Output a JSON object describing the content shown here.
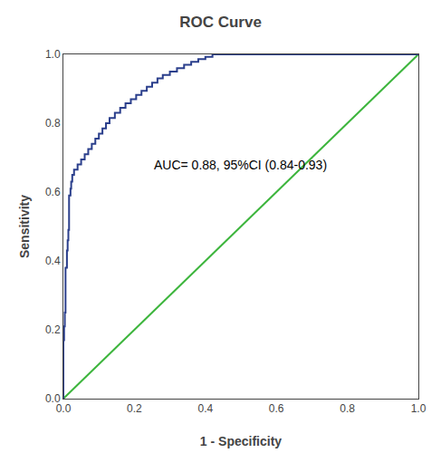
{
  "chart_data": {
    "type": "line",
    "title": "ROC Curve",
    "x_label": "1 - Specificity",
    "y_label": "Sensitivity",
    "xlim": [
      0.0,
      1.0
    ],
    "ylim": [
      0.0,
      1.0
    ],
    "xticks": [
      {
        "value": 0.0,
        "label": "0.0"
      },
      0.2,
      0.4,
      0.6,
      0.8,
      {
        "value": 1.0,
        "label": "1.0"
      }
    ],
    "yticks": [
      {
        "value": 0.0,
        "label": "0.0"
      },
      0.2,
      0.4,
      0.6,
      0.8,
      {
        "value": 1.0,
        "label": "1.0"
      }
    ],
    "grid": false,
    "annotations": [
      {
        "text": "AUC= 0.88, 95%CI (0.84-0.93)",
        "x": 0.25,
        "y": 0.68
      }
    ],
    "series": [
      {
        "color": "#3db53d",
        "x": [
          0,
          1
        ],
        "values": [
          0,
          1
        ]
      },
      {
        "color": "#2b3f8c",
        "x": [
          0.0,
          0.0,
          0.0,
          0.002,
          0.002,
          0.004,
          0.004,
          0.006,
          0.006,
          0.01,
          0.01,
          0.012,
          0.012,
          0.014,
          0.014,
          0.016,
          0.016,
          0.02,
          0.02,
          0.022,
          0.022,
          0.025,
          0.025,
          0.03,
          0.03,
          0.04,
          0.04,
          0.05,
          0.05,
          0.06,
          0.06,
          0.07,
          0.07,
          0.08,
          0.08,
          0.09,
          0.09,
          0.1,
          0.1,
          0.11,
          0.11,
          0.12,
          0.12,
          0.13,
          0.13,
          0.145,
          0.145,
          0.16,
          0.16,
          0.175,
          0.175,
          0.19,
          0.19,
          0.205,
          0.205,
          0.22,
          0.22,
          0.235,
          0.235,
          0.25,
          0.25,
          0.265,
          0.265,
          0.28,
          0.28,
          0.3,
          0.3,
          0.32,
          0.32,
          0.34,
          0.34,
          0.36,
          0.36,
          0.38,
          0.38,
          0.4,
          0.4,
          0.42,
          0.42,
          1.0
        ],
        "values": [
          0.0,
          0.06,
          0.17,
          0.17,
          0.21,
          0.21,
          0.25,
          0.25,
          0.38,
          0.38,
          0.43,
          0.43,
          0.46,
          0.46,
          0.49,
          0.49,
          0.59,
          0.59,
          0.61,
          0.61,
          0.63,
          0.63,
          0.65,
          0.65,
          0.665,
          0.665,
          0.68,
          0.68,
          0.695,
          0.695,
          0.71,
          0.71,
          0.725,
          0.725,
          0.74,
          0.74,
          0.755,
          0.755,
          0.77,
          0.77,
          0.785,
          0.785,
          0.8,
          0.8,
          0.815,
          0.815,
          0.83,
          0.83,
          0.845,
          0.845,
          0.858,
          0.858,
          0.87,
          0.87,
          0.882,
          0.882,
          0.894,
          0.894,
          0.906,
          0.906,
          0.918,
          0.918,
          0.93,
          0.93,
          0.94,
          0.94,
          0.95,
          0.95,
          0.96,
          0.96,
          0.97,
          0.97,
          0.978,
          0.978,
          0.986,
          0.986,
          0.993,
          0.993,
          1.0,
          1.0
        ]
      }
    ]
  }
}
